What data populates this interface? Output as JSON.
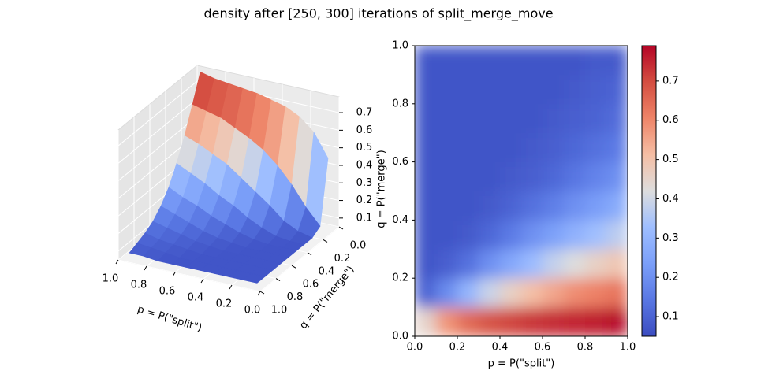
{
  "title": "density after [250, 300] iterations of split_merge_move",
  "chart_data": [
    {
      "type": "surface",
      "colormap": "coolwarm",
      "xlabel": "p = P(\"split\")",
      "ylabel": "q = P(\"merge\")",
      "zlabel": "q = P(\"merge\")",
      "x": [
        0.05,
        0.15,
        0.25,
        0.35,
        0.45,
        0.55,
        0.65,
        0.75,
        0.85,
        0.95
      ],
      "y": [
        0.05,
        0.15,
        0.25,
        0.35,
        0.45,
        0.55,
        0.65,
        0.75,
        0.85,
        0.95
      ],
      "z": [
        [
          0.45,
          0.58,
          0.65,
          0.69,
          0.71,
          0.73,
          0.74,
          0.75,
          0.76,
          0.78
        ],
        [
          0.1,
          0.19,
          0.3,
          0.39,
          0.46,
          0.51,
          0.55,
          0.59,
          0.61,
          0.63
        ],
        [
          0.07,
          0.09,
          0.13,
          0.2,
          0.26,
          0.32,
          0.38,
          0.42,
          0.46,
          0.49
        ],
        [
          0.07,
          0.07,
          0.08,
          0.11,
          0.15,
          0.2,
          0.24,
          0.29,
          0.33,
          0.37
        ],
        [
          0.07,
          0.07,
          0.07,
          0.08,
          0.1,
          0.13,
          0.16,
          0.2,
          0.23,
          0.27
        ],
        [
          0.07,
          0.07,
          0.07,
          0.07,
          0.08,
          0.09,
          0.11,
          0.14,
          0.17,
          0.2
        ],
        [
          0.07,
          0.07,
          0.07,
          0.07,
          0.07,
          0.08,
          0.09,
          0.11,
          0.13,
          0.15
        ],
        [
          0.07,
          0.07,
          0.07,
          0.07,
          0.07,
          0.07,
          0.08,
          0.09,
          0.1,
          0.12
        ],
        [
          0.07,
          0.07,
          0.07,
          0.07,
          0.07,
          0.07,
          0.07,
          0.08,
          0.09,
          0.1
        ],
        [
          0.07,
          0.07,
          0.07,
          0.07,
          0.07,
          0.07,
          0.07,
          0.07,
          0.08,
          0.08
        ]
      ],
      "xlim": [
        0,
        1
      ],
      "ylim": [
        0,
        1
      ],
      "zlim": [
        0.05,
        0.79
      ],
      "clim": [
        0.05,
        0.79
      ],
      "xticks": [
        {
          "value": 0,
          "label": "0.0"
        },
        0.2,
        0.4,
        0.6,
        0.8,
        {
          "value": 1,
          "label": "1.0"
        }
      ],
      "yticks": [
        {
          "value": 0,
          "label": "0.0"
        },
        0.2,
        0.4,
        0.6,
        0.8,
        {
          "value": 1,
          "label": "1.0"
        }
      ],
      "zticks": [
        0.1,
        0.2,
        0.3,
        0.4,
        0.5,
        0.6,
        0.7
      ],
      "grid": true
    },
    {
      "type": "heatmap",
      "colormap": "coolwarm",
      "xlabel": "p = P(\"split\")",
      "x": [
        0.05,
        0.15,
        0.25,
        0.35,
        0.45,
        0.55,
        0.65,
        0.75,
        0.85,
        0.95
      ],
      "y": [
        0.05,
        0.15,
        0.25,
        0.35,
        0.45,
        0.55,
        0.65,
        0.75,
        0.85,
        0.95
      ],
      "z": [
        [
          0.45,
          0.58,
          0.65,
          0.69,
          0.71,
          0.73,
          0.74,
          0.75,
          0.76,
          0.78
        ],
        [
          0.1,
          0.19,
          0.3,
          0.39,
          0.46,
          0.51,
          0.55,
          0.59,
          0.61,
          0.63
        ],
        [
          0.07,
          0.09,
          0.13,
          0.2,
          0.26,
          0.32,
          0.38,
          0.42,
          0.46,
          0.49
        ],
        [
          0.07,
          0.07,
          0.08,
          0.11,
          0.15,
          0.2,
          0.24,
          0.29,
          0.33,
          0.37
        ],
        [
          0.07,
          0.07,
          0.07,
          0.08,
          0.1,
          0.13,
          0.16,
          0.2,
          0.23,
          0.27
        ],
        [
          0.07,
          0.07,
          0.07,
          0.07,
          0.08,
          0.09,
          0.11,
          0.14,
          0.17,
          0.2
        ],
        [
          0.07,
          0.07,
          0.07,
          0.07,
          0.07,
          0.08,
          0.09,
          0.11,
          0.13,
          0.15
        ],
        [
          0.07,
          0.07,
          0.07,
          0.07,
          0.07,
          0.07,
          0.08,
          0.09,
          0.1,
          0.12
        ],
        [
          0.07,
          0.07,
          0.07,
          0.07,
          0.07,
          0.07,
          0.07,
          0.08,
          0.09,
          0.1
        ],
        [
          0.07,
          0.07,
          0.07,
          0.07,
          0.07,
          0.07,
          0.07,
          0.07,
          0.08,
          0.08
        ]
      ],
      "xlim": [
        0,
        1
      ],
      "ylim": [
        0,
        1
      ],
      "clim": [
        0.05,
        0.79
      ],
      "xticks": [
        {
          "value": 0,
          "label": "0.0"
        },
        0.2,
        0.4,
        0.6,
        0.8,
        {
          "value": 1,
          "label": "1.0"
        }
      ],
      "yticks": [
        {
          "value": 0,
          "label": "0.0"
        },
        0.2,
        0.4,
        0.6,
        0.8,
        {
          "value": 1,
          "label": "1.0"
        }
      ],
      "colorbar_ticks": [
        0.1,
        0.2,
        0.3,
        0.4,
        0.5,
        0.6,
        0.7
      ]
    }
  ]
}
